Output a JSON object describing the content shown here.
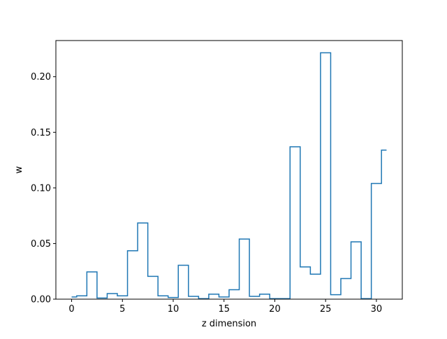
{
  "chart_data": {
    "type": "line",
    "drawstyle": "steps-mid",
    "title": "",
    "xlabel": "z dimension",
    "ylabel": "w",
    "xlim": [
      -1.55,
      32.55
    ],
    "ylim": [
      0,
      0.2325
    ],
    "xticks": [
      0,
      5,
      10,
      15,
      20,
      25,
      30
    ],
    "xtick_labels": [
      "0",
      "5",
      "10",
      "15",
      "20",
      "25",
      "30"
    ],
    "yticks": [
      0,
      0.05,
      0.1,
      0.15,
      0.2
    ],
    "ytick_labels": [
      "0.00",
      "0.05",
      "0.10",
      "0.15",
      "0.20"
    ],
    "grid": false,
    "legend": "none",
    "color": "#1f77b4",
    "series": [
      {
        "x": [
          0,
          1,
          2,
          3,
          4,
          5,
          6,
          7,
          8,
          9,
          10,
          11,
          12,
          13,
          14,
          15,
          16,
          17,
          18,
          19,
          20,
          21,
          22,
          23,
          24,
          25,
          26,
          27,
          28,
          29,
          30,
          31
        ],
        "values": [
          0.002,
          0.003,
          0.0245,
          0.001,
          0.005,
          0.003,
          0.0435,
          0.0685,
          0.0205,
          0.003,
          0.0015,
          0.0305,
          0.0025,
          0.0005,
          0.0045,
          0.002,
          0.0085,
          0.054,
          0.0025,
          0.0045,
          0.0005,
          0.0005,
          0.137,
          0.029,
          0.0225,
          0.2215,
          0.004,
          0.0185,
          0.0515,
          0.0005,
          0.104,
          0.134
        ]
      }
    ]
  }
}
